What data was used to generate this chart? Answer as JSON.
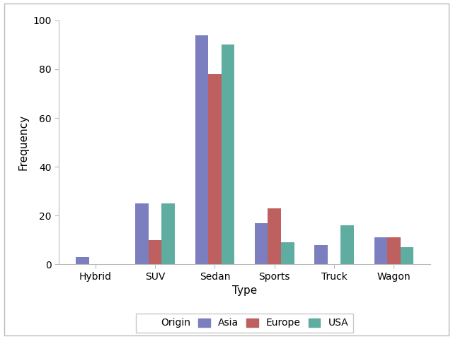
{
  "categories": [
    "Hybrid",
    "SUV",
    "Sedan",
    "Sports",
    "Truck",
    "Wagon"
  ],
  "series": {
    "Asia": [
      3,
      25,
      94,
      17,
      8,
      11
    ],
    "Europe": [
      0,
      10,
      78,
      23,
      0,
      11
    ],
    "USA": [
      0,
      25,
      90,
      9,
      16,
      7
    ]
  },
  "colors": {
    "Asia": "#7b7fbf",
    "Europe": "#bf6060",
    "USA": "#5fada0"
  },
  "xlabel": "Type",
  "ylabel": "Frequency",
  "ylim": [
    0,
    100
  ],
  "yticks": [
    0,
    20,
    40,
    60,
    80,
    100
  ],
  "legend_title": "Origin",
  "bar_width": 0.22,
  "figsize": [
    6.4,
    4.8
  ],
  "dpi": 100,
  "background_color": "#ffffff",
  "border_color": "#bbbbbb"
}
